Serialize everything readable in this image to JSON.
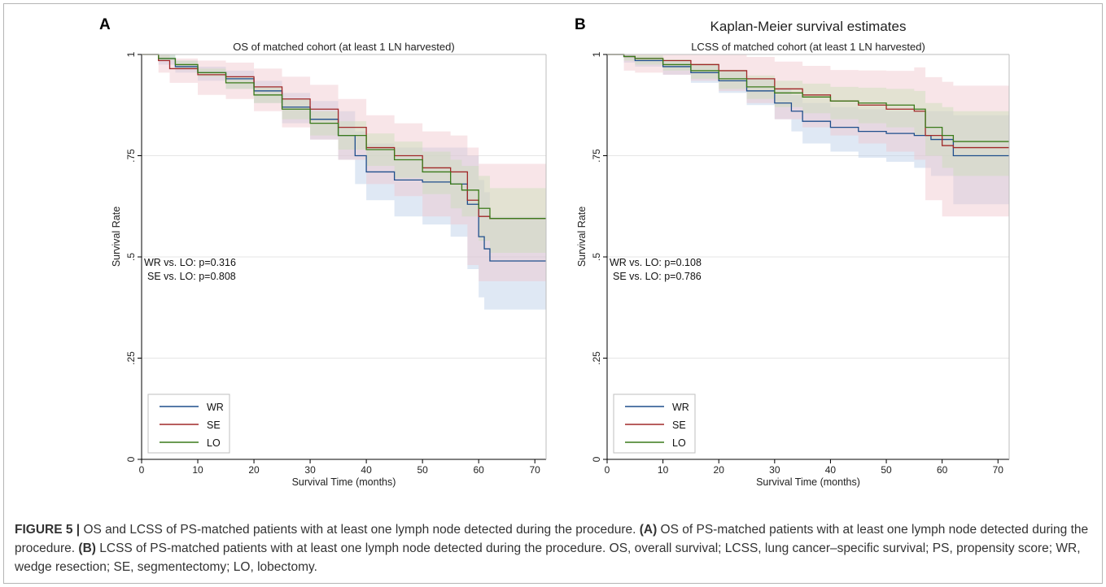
{
  "colors": {
    "WR": "#1f4e8c",
    "SE": "#a02828",
    "LO": "#3a7a1a",
    "WR_band": "#b8cde6",
    "SE_band": "#f0c6cc",
    "LO_band": "#c9ddb8",
    "grid": "#e6e6e6",
    "axis": "#000000"
  },
  "chart_data": [
    {
      "type": "line",
      "panel_label": "A",
      "suptitle": "",
      "title": "OS of matched cohort (at least 1 LN harvested)",
      "xlabel": "Survival Time (months)",
      "ylabel": "Survival Rate",
      "xlim": [
        0,
        72
      ],
      "ylim": [
        0,
        1
      ],
      "xticks": [
        "0",
        "10",
        "20",
        "30",
        "40",
        "50",
        "60",
        "70"
      ],
      "yticks": [
        "0",
        ".25",
        ".5",
        ".75",
        "1"
      ],
      "grid": true,
      "legend_position": "bottom-left",
      "annotations": [
        "WR vs. LO: p=0.316",
        "SE vs. LO: p=0.808"
      ],
      "series": [
        {
          "name": "WR",
          "x": [
            0,
            3,
            6,
            10,
            15,
            20,
            25,
            30,
            35,
            38,
            40,
            45,
            50,
            55,
            58,
            60,
            61,
            62,
            72
          ],
          "y": [
            1,
            0.99,
            0.97,
            0.955,
            0.94,
            0.91,
            0.87,
            0.84,
            0.8,
            0.75,
            0.71,
            0.69,
            0.685,
            0.68,
            0.63,
            0.55,
            0.52,
            0.49,
            0.49
          ],
          "lower": [
            1,
            0.975,
            0.955,
            0.935,
            0.915,
            0.88,
            0.83,
            0.79,
            0.74,
            0.68,
            0.64,
            0.6,
            0.58,
            0.55,
            0.47,
            0.4,
            0.37,
            0.37,
            0.37
          ],
          "upper": [
            1,
            1,
            0.985,
            0.97,
            0.96,
            0.935,
            0.905,
            0.885,
            0.86,
            0.81,
            0.78,
            0.77,
            0.77,
            0.77,
            0.75,
            0.69,
            0.66,
            0.6,
            0.6
          ]
        },
        {
          "name": "SE",
          "x": [
            0,
            3,
            5,
            10,
            15,
            20,
            25,
            30,
            35,
            40,
            45,
            50,
            55,
            58,
            60,
            62,
            72
          ],
          "y": [
            1,
            0.985,
            0.965,
            0.95,
            0.945,
            0.92,
            0.89,
            0.865,
            0.82,
            0.77,
            0.75,
            0.72,
            0.71,
            0.64,
            0.6,
            0.595,
            0.595
          ],
          "lower": [
            1,
            0.955,
            0.93,
            0.9,
            0.89,
            0.86,
            0.82,
            0.79,
            0.74,
            0.68,
            0.65,
            0.6,
            0.58,
            0.48,
            0.44,
            0.44,
            0.44
          ],
          "upper": [
            1,
            1,
            0.99,
            0.985,
            0.98,
            0.965,
            0.945,
            0.925,
            0.89,
            0.85,
            0.83,
            0.81,
            0.8,
            0.77,
            0.73,
            0.73,
            0.73
          ]
        },
        {
          "name": "LO",
          "x": [
            0,
            3,
            6,
            10,
            15,
            20,
            25,
            30,
            35,
            40,
            45,
            50,
            55,
            57,
            60,
            62,
            72
          ],
          "y": [
            1,
            0.99,
            0.975,
            0.955,
            0.93,
            0.9,
            0.865,
            0.83,
            0.8,
            0.765,
            0.74,
            0.71,
            0.68,
            0.665,
            0.62,
            0.595,
            0.595
          ],
          "lower": [
            1,
            0.985,
            0.965,
            0.945,
            0.915,
            0.88,
            0.84,
            0.8,
            0.765,
            0.725,
            0.695,
            0.655,
            0.62,
            0.6,
            0.54,
            0.51,
            0.51
          ],
          "upper": [
            1,
            1,
            0.985,
            0.965,
            0.945,
            0.92,
            0.89,
            0.86,
            0.835,
            0.805,
            0.785,
            0.76,
            0.74,
            0.725,
            0.7,
            0.67,
            0.67
          ]
        }
      ]
    },
    {
      "type": "line",
      "panel_label": "B",
      "suptitle": "Kaplan-Meier survival estimates",
      "title": "LCSS of matched cohort (at least 1 LN harvested)",
      "xlabel": "Survival Time (months)",
      "ylabel": "Survival Rate",
      "xlim": [
        0,
        72
      ],
      "ylim": [
        0,
        1
      ],
      "xticks": [
        "0",
        "10",
        "20",
        "30",
        "40",
        "50",
        "60",
        "70"
      ],
      "yticks": [
        "0",
        ".25",
        ".5",
        ".75",
        "1"
      ],
      "grid": true,
      "legend_position": "bottom-left",
      "annotations": [
        "WR vs. LO: p=0.108",
        "SE vs. LO: p=0.786"
      ],
      "series": [
        {
          "name": "WR",
          "x": [
            0,
            3,
            5,
            10,
            15,
            20,
            25,
            30,
            33,
            35,
            40,
            45,
            50,
            55,
            58,
            62,
            72
          ],
          "y": [
            1,
            0.995,
            0.985,
            0.97,
            0.955,
            0.935,
            0.91,
            0.88,
            0.86,
            0.835,
            0.82,
            0.81,
            0.805,
            0.8,
            0.79,
            0.75,
            0.75
          ],
          "lower": [
            1,
            0.98,
            0.97,
            0.95,
            0.93,
            0.905,
            0.875,
            0.84,
            0.81,
            0.78,
            0.76,
            0.745,
            0.735,
            0.72,
            0.7,
            0.63,
            0.63
          ],
          "upper": [
            1,
            1,
            0.995,
            0.985,
            0.975,
            0.96,
            0.94,
            0.915,
            0.9,
            0.88,
            0.87,
            0.865,
            0.86,
            0.86,
            0.86,
            0.85,
            0.85
          ]
        },
        {
          "name": "SE",
          "x": [
            0,
            3,
            5,
            10,
            15,
            20,
            25,
            30,
            35,
            40,
            45,
            50,
            55,
            57,
            60,
            62,
            72
          ],
          "y": [
            1,
            0.995,
            0.99,
            0.985,
            0.975,
            0.96,
            0.94,
            0.915,
            0.9,
            0.885,
            0.875,
            0.865,
            0.86,
            0.8,
            0.775,
            0.77,
            0.77
          ],
          "lower": [
            1,
            0.96,
            0.955,
            0.95,
            0.935,
            0.91,
            0.88,
            0.84,
            0.82,
            0.8,
            0.78,
            0.76,
            0.74,
            0.64,
            0.6,
            0.6,
            0.6
          ]
        },
        {
          "name": "LO",
          "x": [
            0,
            3,
            5,
            10,
            15,
            20,
            25,
            30,
            35,
            40,
            45,
            50,
            55,
            57,
            60,
            62,
            72
          ],
          "y": [
            1,
            0.995,
            0.99,
            0.975,
            0.96,
            0.94,
            0.92,
            0.905,
            0.895,
            0.885,
            0.88,
            0.875,
            0.865,
            0.82,
            0.8,
            0.785,
            0.785
          ],
          "lower": [
            1,
            0.985,
            0.975,
            0.96,
            0.94,
            0.915,
            0.89,
            0.87,
            0.855,
            0.84,
            0.83,
            0.82,
            0.8,
            0.75,
            0.72,
            0.7,
            0.7
          ],
          "upper": [
            1,
            1,
            0.998,
            0.988,
            0.978,
            0.962,
            0.948,
            0.935,
            0.928,
            0.92,
            0.918,
            0.915,
            0.91,
            0.88,
            0.87,
            0.86,
            0.86
          ]
        }
      ]
    }
  ],
  "caption": {
    "figure_label": "FIGURE 5 |",
    "text_1": " OS and LCSS of PS-matched patients with at least one lymph node detected during the procedure. ",
    "label_a": "(A)",
    "text_2": " OS of PS-matched patients with at least one lymph node detected during the procedure. ",
    "label_b": "(B)",
    "text_3": " LCSS of PS-matched patients with at least one lymph node detected during the procedure. OS, overall survival; LCSS, lung cancer–specific survival; PS, propensity score; WR, wedge resection; SE, segmentectomy; LO, lobectomy."
  }
}
